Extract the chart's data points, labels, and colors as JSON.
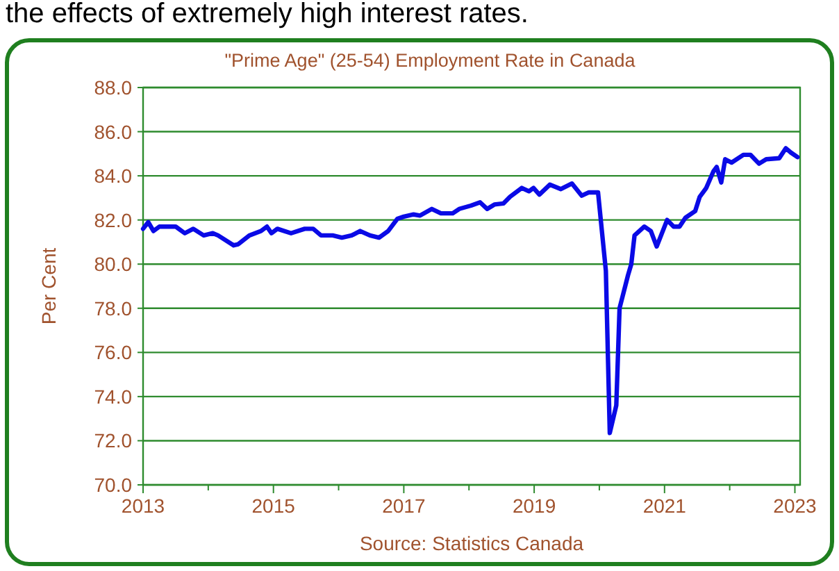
{
  "chart_data": {
    "type": "line",
    "title": "\"Prime Age\" (25-54)  Employment Rate in Canada",
    "ylabel": "Per Cent",
    "annotations": [
      "the effects of extremely high interest rates.",
      "Source: Statistics Canada"
    ],
    "x": [
      2013.0,
      2013.08,
      2013.16,
      2013.25,
      2013.5,
      2013.64,
      2013.77,
      2013.93,
      2014.07,
      2014.15,
      2014.39,
      2014.46,
      2014.63,
      2014.81,
      2014.9,
      2014.97,
      2015.06,
      2015.27,
      2015.48,
      2015.61,
      2015.73,
      2015.91,
      2016.05,
      2016.2,
      2016.33,
      2016.48,
      2016.62,
      2016.76,
      2016.9,
      2017.0,
      2017.15,
      2017.25,
      2017.43,
      2017.57,
      2017.75,
      2017.85,
      2018.03,
      2018.17,
      2018.28,
      2018.39,
      2018.53,
      2018.63,
      2018.81,
      2018.92,
      2018.99,
      2019.08,
      2019.24,
      2019.41,
      2019.58,
      2019.73,
      2019.84,
      2019.98,
      2020.1,
      2020.16,
      2020.26,
      2020.31,
      2020.44,
      2020.49,
      2020.54,
      2020.69,
      2020.79,
      2020.88,
      2021.04,
      2021.14,
      2021.23,
      2021.32,
      2021.47,
      2021.54,
      2021.64,
      2021.75,
      2021.8,
      2021.87,
      2021.93,
      2022.03,
      2022.21,
      2022.32,
      2022.45,
      2022.56,
      2022.76,
      2022.86,
      2022.94,
      2023.04
    ],
    "series": [
      {
        "color": "#0a0ae6",
        "values": [
          81.6,
          81.9,
          81.5,
          81.7,
          81.7,
          81.4,
          81.6,
          81.3,
          81.4,
          81.3,
          80.85,
          80.9,
          81.3,
          81.5,
          81.7,
          81.4,
          81.6,
          81.4,
          81.6,
          81.6,
          81.3,
          81.3,
          81.2,
          81.3,
          81.5,
          81.3,
          81.2,
          81.5,
          82.05,
          82.15,
          82.25,
          82.2,
          82.5,
          82.3,
          82.3,
          82.5,
          82.65,
          82.8,
          82.5,
          82.7,
          82.75,
          83.05,
          83.45,
          83.3,
          83.45,
          83.15,
          83.6,
          83.4,
          83.65,
          83.1,
          83.25,
          83.25,
          79.7,
          72.35,
          73.6,
          78.0,
          79.5,
          80.0,
          81.3,
          81.7,
          81.5,
          80.8,
          82.0,
          81.7,
          81.7,
          82.1,
          82.4,
          83.05,
          83.45,
          84.2,
          84.4,
          83.7,
          84.75,
          84.6,
          84.95,
          84.95,
          84.55,
          84.75,
          84.8,
          85.25,
          85.05,
          84.85
        ]
      }
    ],
    "xlim": [
      2013,
      2023.08
    ],
    "xticks": [
      2013,
      {
        "value": 2014,
        "label": null
      },
      2015,
      {
        "value": 2016,
        "label": null
      },
      2017,
      {
        "value": 2018,
        "label": null
      },
      2019,
      {
        "value": 2020,
        "label": null
      },
      2021,
      {
        "value": 2022,
        "label": null
      },
      2023
    ],
    "ylim": [
      70,
      88
    ],
    "yticks": [
      {
        "value": 70,
        "label": "70.0"
      },
      {
        "value": 72,
        "label": "72.0"
      },
      {
        "value": 74,
        "label": "74.0"
      },
      {
        "value": 76,
        "label": "76.0"
      },
      {
        "value": 78,
        "label": "78.0"
      },
      {
        "value": 80,
        "label": "80.0"
      },
      {
        "value": 82,
        "label": "82.0"
      },
      {
        "value": 84,
        "label": "84.0"
      },
      {
        "value": 86,
        "label": "86.0"
      },
      {
        "value": 88,
        "label": "88.0"
      }
    ],
    "grid": "y",
    "marker": "none",
    "line_style": "solid"
  }
}
